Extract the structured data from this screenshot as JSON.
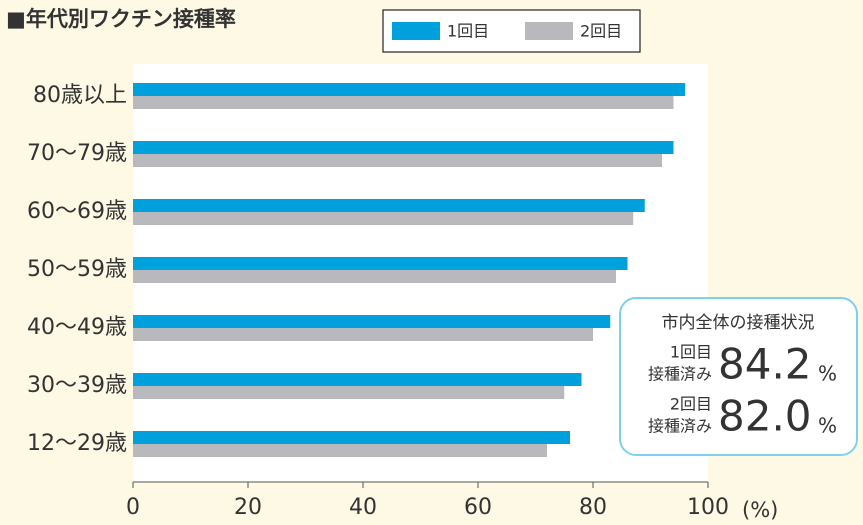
{
  "chart_data": {
    "type": "hbar",
    "title": "■年代別ワクチン接種率",
    "categories": [
      "80歳以上",
      "70〜79歳",
      "60〜69歳",
      "50〜59歳",
      "40〜49歳",
      "30〜39歳",
      "12〜29歳"
    ],
    "series": [
      {
        "name": "1回目",
        "color": "#00a0dc",
        "values": [
          96,
          94,
          89,
          86,
          83,
          78,
          76
        ]
      },
      {
        "name": "2回目",
        "color": "#b9b9bd",
        "values": [
          94,
          92,
          87,
          84,
          80,
          75,
          72
        ]
      }
    ],
    "xlim": [
      0,
      100
    ],
    "xticks": [
      0,
      20,
      40,
      60,
      80,
      100
    ],
    "xlabel": "(%)",
    "summary": {
      "title": "市内全体の接種状況",
      "items": [
        {
          "label": "1回目",
          "sublabel": "接種済み",
          "value": 84.2,
          "value_label": "84.2",
          "unit": "%"
        },
        {
          "label": "2回目",
          "sublabel": "接種済み",
          "value": 82.0,
          "value_label": "82.0",
          "unit": "%"
        }
      ]
    }
  }
}
